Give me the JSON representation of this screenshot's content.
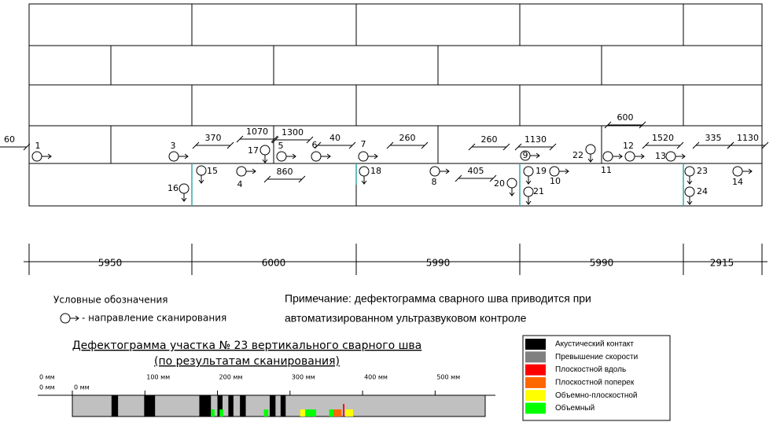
{
  "dimensions": [
    "60",
    "370",
    "1070",
    "1300",
    "40",
    "260",
    "260",
    "1130",
    "600",
    "1520",
    "335",
    "1130",
    "860",
    "405"
  ],
  "markers": [
    {
      "label": "1",
      "dir": "right"
    },
    {
      "label": "3",
      "dir": "right"
    },
    {
      "label": "4",
      "dir": "right"
    },
    {
      "label": "5",
      "dir": "right"
    },
    {
      "label": "6",
      "dir": "right"
    },
    {
      "label": "7",
      "dir": "right"
    },
    {
      "label": "8",
      "dir": "right"
    },
    {
      "label": "9",
      "dir": "right"
    },
    {
      "label": "10",
      "dir": "right"
    },
    {
      "label": "11",
      "dir": "right"
    },
    {
      "label": "12",
      "dir": "right"
    },
    {
      "label": "13",
      "dir": "right"
    },
    {
      "label": "14",
      "dir": "right"
    },
    {
      "label": "15",
      "dir": "down"
    },
    {
      "label": "16",
      "dir": "down"
    },
    {
      "label": "17",
      "dir": "down"
    },
    {
      "label": "18",
      "dir": "down"
    },
    {
      "label": "19",
      "dir": "down"
    },
    {
      "label": "20",
      "dir": "down"
    },
    {
      "label": "21",
      "dir": "down"
    },
    {
      "label": "22",
      "dir": "down"
    },
    {
      "label": "23",
      "dir": "down"
    },
    {
      "label": "24",
      "dir": "down"
    }
  ],
  "plate_lengths": [
    "5950",
    "6000",
    "5990",
    "5990",
    "2915"
  ],
  "legend": {
    "title": "Условные обозначения",
    "scan": "- направление сканирования"
  },
  "note": [
    "Примечание: дефектограмма сварного шва приводится при",
    "автоматизированном ультразвуковом контроле"
  ],
  "defectogram": {
    "title": "Дефектограмма участка № 23 вертикального сварного шва",
    "subtitle": "(по результатам сканирования)",
    "side_labels": [
      "0 мм",
      "0 мм"
    ],
    "xlim": [
      0,
      569
    ],
    "xticks": [
      {
        "value": 0,
        "label": "0 мм"
      },
      {
        "value": 100,
        "label": "100 мм"
      },
      {
        "value": 200,
        "label": "200 мм"
      },
      {
        "value": 300,
        "label": "300 мм"
      },
      {
        "value": 400,
        "label": "400 мм"
      },
      {
        "value": 500,
        "label": "500 мм"
      }
    ],
    "kinds": [
      {
        "name": "Акустический контакт",
        "color": "#000000"
      },
      {
        "name": "Превышение скорости",
        "color": "#808080"
      },
      {
        "name": "Плоскостной вдоль",
        "color": "#ff0000"
      },
      {
        "name": "Плоскостной поперек",
        "color": "#ff6600"
      },
      {
        "name": "Объемно-плоскостной",
        "color": "#ffff00"
      },
      {
        "name": "Объемный",
        "color": "#00ff00"
      }
    ],
    "defects": [
      {
        "start": 54,
        "end": 63,
        "kind": 0
      },
      {
        "start": 99,
        "end": 114,
        "kind": 0
      },
      {
        "start": 175,
        "end": 191,
        "kind": 0
      },
      {
        "start": 200,
        "end": 207,
        "kind": 0
      },
      {
        "start": 215,
        "end": 222,
        "kind": 0
      },
      {
        "start": 231,
        "end": 239,
        "kind": 0
      },
      {
        "start": 272,
        "end": 280,
        "kind": 0
      },
      {
        "start": 287,
        "end": 294,
        "kind": 0
      },
      {
        "start": 191,
        "end": 196,
        "kind": 5
      },
      {
        "start": 203,
        "end": 208,
        "kind": 5
      },
      {
        "start": 264,
        "end": 270,
        "kind": 5
      },
      {
        "start": 314,
        "end": 321,
        "kind": 4
      },
      {
        "start": 321,
        "end": 336,
        "kind": 5
      },
      {
        "start": 354,
        "end": 360,
        "kind": 5
      },
      {
        "start": 360,
        "end": 371,
        "kind": 3
      },
      {
        "start": 373,
        "end": 375,
        "kind": 2
      },
      {
        "start": 376,
        "end": 387,
        "kind": 4
      }
    ]
  }
}
